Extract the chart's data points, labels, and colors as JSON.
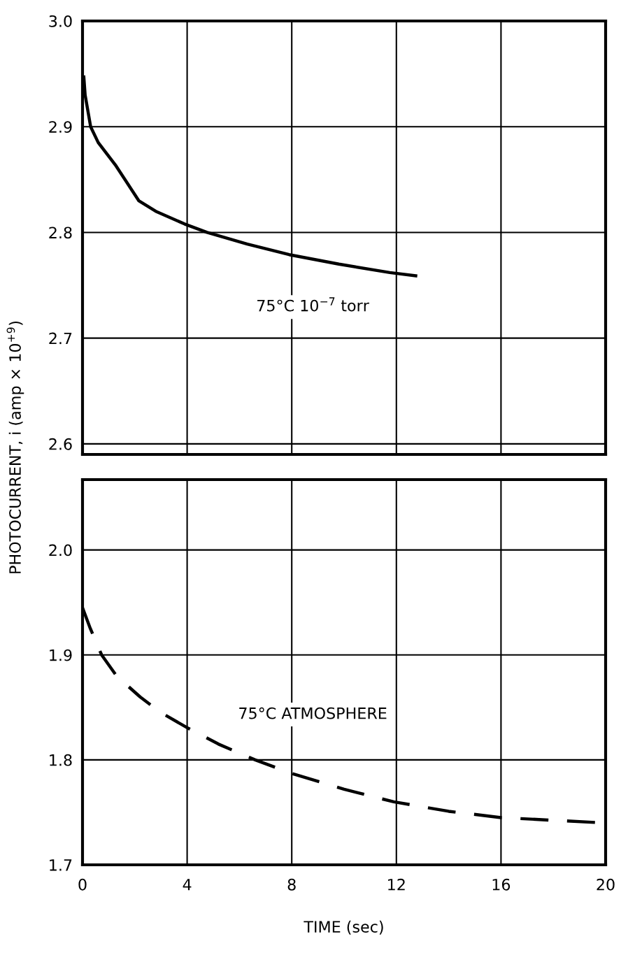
{
  "chart_data": [
    {
      "type": "line",
      "x": [
        0.05,
        0.1,
        0.31,
        0.6,
        1.28,
        2.15,
        2.8,
        3.9,
        4.76,
        6.3,
        7.9,
        9.8,
        11.75,
        12.74
      ],
      "series": [
        {
          "name": "75°C 10$^{−7}$ torr",
          "color": "#000000",
          "line_style": "solid",
          "values": [
            2.947,
            2.93,
            2.9,
            2.885,
            2.863,
            2.83,
            2.82,
            2.808,
            2.8,
            2.789,
            2.779,
            2.77,
            2.762,
            2.759
          ]
        }
      ],
      "xlim": [
        0,
        20
      ],
      "xticks": [
        0,
        4,
        8,
        12,
        16,
        20
      ],
      "ylim": [
        2.59,
        3.0
      ],
      "yticks": [
        {
          "value": 2.6,
          "label": "2.6"
        },
        {
          "value": 2.7,
          "label": "2.7"
        },
        {
          "value": 2.8,
          "label": "2.8"
        },
        {
          "value": 2.9,
          "label": "2.9"
        },
        {
          "value": 3.0,
          "label": "3.0"
        }
      ],
      "tick_labels": "y",
      "grid": true
    },
    {
      "type": "line",
      "x": [
        0,
        0.3,
        0.73,
        1.3,
        2.2,
        3.0,
        4.05,
        5.2,
        6.6,
        8,
        10,
        11.9,
        14,
        16,
        19.9
      ],
      "series": [
        {
          "name": "75°C ATMOSPHERE",
          "color": "#000000",
          "line_style": "dashed",
          "values": [
            1.945,
            1.925,
            1.9,
            1.88,
            1.86,
            1.845,
            1.83,
            1.815,
            1.8,
            1.787,
            1.772,
            1.76,
            1.751,
            1.745,
            1.74
          ]
        }
      ],
      "xlim": [
        0,
        20
      ],
      "xticks": [
        0,
        4,
        8,
        12,
        16,
        20
      ],
      "ylim": [
        1.7,
        2.067
      ],
      "yticks": [
        {
          "value": 1.7,
          "label": "1.7"
        },
        {
          "value": 1.8,
          "label": "1.8"
        },
        {
          "value": 1.9,
          "label": "1.9"
        },
        {
          "value": 2.0,
          "label": "2.0"
        }
      ],
      "grid": true,
      "xlabel": "TIME (sec)",
      "ylabel": "PHOTOCURRENT, i (amp × 10$^{+9}$)"
    }
  ]
}
